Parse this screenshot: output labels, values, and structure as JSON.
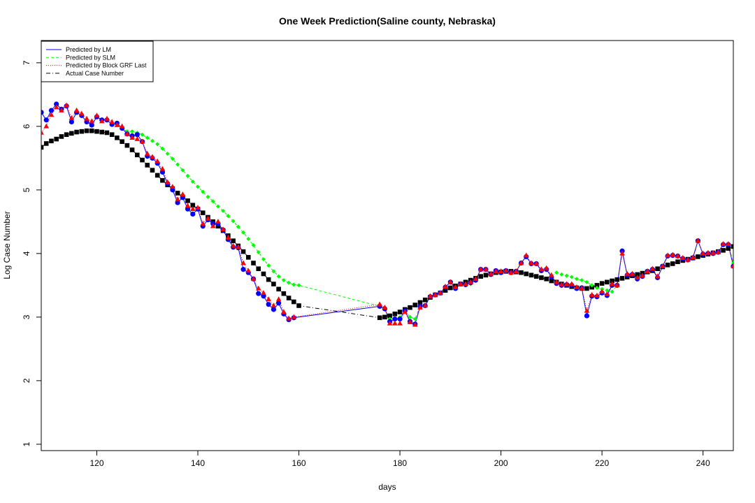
{
  "chart_data": {
    "type": "line",
    "title": "One Week Prediction(Saline county, Nebraska)",
    "xlabel": "days",
    "ylabel": "Log Case Number",
    "xlim": [
      109,
      246
    ],
    "ylim": [
      0.9,
      7.35
    ],
    "x_ticks": [
      120,
      140,
      160,
      180,
      200,
      220,
      240
    ],
    "y_ticks": [
      1,
      2,
      3,
      4,
      5,
      6,
      7
    ],
    "grid": false,
    "legend_position": "top-left",
    "series": [
      {
        "name": "Actual Case Number",
        "color": "#000000",
        "marker": "square",
        "x": [
          109,
          110,
          111,
          112,
          113,
          114,
          115,
          116,
          117,
          118,
          119,
          120,
          121,
          122,
          123,
          124,
          125,
          126,
          127,
          128,
          129,
          130,
          131,
          132,
          133,
          134,
          135,
          136,
          137,
          138,
          139,
          140,
          141,
          142,
          143,
          144,
          145,
          146,
          147,
          148,
          149,
          150,
          151,
          152,
          153,
          154,
          155,
          156,
          157,
          158,
          159,
          160,
          176,
          177,
          178,
          179,
          180,
          181,
          182,
          183,
          184,
          185,
          186,
          187,
          188,
          189,
          190,
          191,
          192,
          193,
          194,
          195,
          196,
          197,
          198,
          199,
          200,
          201,
          202,
          203,
          204,
          205,
          206,
          207,
          208,
          209,
          210,
          211,
          212,
          213,
          214,
          215,
          216,
          217,
          218,
          219,
          220,
          221,
          222,
          223,
          224,
          225,
          226,
          227,
          228,
          229,
          230,
          231,
          232,
          233,
          234,
          235,
          236,
          237,
          238,
          239,
          240,
          241,
          242,
          243,
          244,
          245,
          246
        ],
        "y": [
          5.67,
          5.73,
          5.77,
          5.8,
          5.84,
          5.87,
          5.89,
          5.91,
          5.92,
          5.93,
          5.93,
          5.92,
          5.91,
          5.9,
          5.87,
          5.82,
          5.76,
          5.7,
          5.63,
          5.55,
          5.47,
          5.39,
          5.31,
          5.23,
          5.15,
          5.08,
          5.02,
          4.95,
          4.89,
          4.83,
          4.76,
          4.7,
          4.64,
          4.57,
          4.5,
          4.43,
          4.36,
          4.28,
          4.2,
          4.12,
          4.03,
          3.94,
          3.85,
          3.76,
          3.68,
          3.59,
          3.52,
          3.44,
          3.37,
          3.3,
          3.24,
          3.18,
          2.99,
          3.0,
          3.02,
          3.05,
          3.08,
          3.12,
          3.15,
          3.19,
          3.23,
          3.27,
          3.31,
          3.35,
          3.38,
          3.42,
          3.46,
          3.49,
          3.52,
          3.55,
          3.58,
          3.61,
          3.64,
          3.66,
          3.68,
          3.7,
          3.71,
          3.72,
          3.72,
          3.71,
          3.7,
          3.68,
          3.66,
          3.64,
          3.62,
          3.6,
          3.57,
          3.55,
          3.52,
          3.5,
          3.48,
          3.46,
          3.45,
          3.45,
          3.47,
          3.5,
          3.53,
          3.55,
          3.57,
          3.59,
          3.61,
          3.63,
          3.65,
          3.67,
          3.69,
          3.71,
          3.73,
          3.76,
          3.79,
          3.82,
          3.84,
          3.87,
          3.89,
          3.91,
          3.93,
          3.95,
          3.97,
          3.99,
          4.01,
          4.03,
          4.05,
          4.08,
          4.11
        ]
      },
      {
        "name": "Predicted by LM",
        "color": "#0000ff",
        "marker": "circle",
        "x": [
          109,
          110,
          111,
          112,
          113,
          114,
          115,
          116,
          117,
          118,
          119,
          120,
          121,
          122,
          123,
          124,
          125,
          126,
          127,
          128,
          129,
          130,
          131,
          132,
          133,
          134,
          135,
          136,
          137,
          138,
          139,
          140,
          141,
          142,
          143,
          144,
          145,
          146,
          147,
          148,
          149,
          150,
          151,
          152,
          153,
          154,
          155,
          156,
          157,
          158,
          159,
          176,
          177,
          178,
          179,
          180,
          181,
          182,
          183,
          184,
          185,
          186,
          187,
          188,
          189,
          190,
          191,
          192,
          193,
          194,
          195,
          196,
          197,
          198,
          199,
          200,
          201,
          202,
          203,
          204,
          205,
          206,
          207,
          208,
          209,
          210,
          211,
          212,
          213,
          214,
          215,
          216,
          217,
          218,
          219,
          220,
          221,
          222,
          223,
          224,
          225,
          226,
          227,
          228,
          229,
          230,
          231,
          232,
          233,
          234,
          235,
          236,
          237,
          238,
          239,
          240,
          241,
          242,
          243,
          244,
          245,
          246
        ],
        "y": [
          6.22,
          6.1,
          6.25,
          6.35,
          6.27,
          6.32,
          6.07,
          6.22,
          6.17,
          6.07,
          6.02,
          6.15,
          6.1,
          6.1,
          6.03,
          6.05,
          5.97,
          5.88,
          5.85,
          5.87,
          5.76,
          5.53,
          5.5,
          5.42,
          5.28,
          5.1,
          5.0,
          4.8,
          4.88,
          4.7,
          4.62,
          4.7,
          4.43,
          4.53,
          4.47,
          4.47,
          4.37,
          4.22,
          4.1,
          4.09,
          3.75,
          3.7,
          3.6,
          3.37,
          3.33,
          3.2,
          3.12,
          3.22,
          3.05,
          2.96,
          2.99,
          3.17,
          3.13,
          2.93,
          2.97,
          2.97,
          3.1,
          2.93,
          2.89,
          3.17,
          3.18,
          3.32,
          3.35,
          3.38,
          3.47,
          3.55,
          3.45,
          3.52,
          3.51,
          3.54,
          3.58,
          3.75,
          3.75,
          3.67,
          3.73,
          3.7,
          3.73,
          3.7,
          3.72,
          3.85,
          3.95,
          3.84,
          3.84,
          3.73,
          3.75,
          3.63,
          3.53,
          3.5,
          3.51,
          3.5,
          3.45,
          3.46,
          3.02,
          3.33,
          3.32,
          3.38,
          3.34,
          3.5,
          3.5,
          4.04,
          3.66,
          3.67,
          3.6,
          3.64,
          3.72,
          3.75,
          3.62,
          3.8,
          3.96,
          3.97,
          3.96,
          3.92,
          3.9,
          3.93,
          4.2,
          3.99,
          4.0,
          4.0,
          4.02,
          4.14,
          4.14,
          3.8
        ]
      },
      {
        "name": "Predicted by SLM",
        "color": "#00ff00",
        "marker": "diamond",
        "x": [
          109,
          110,
          111,
          112,
          113,
          114,
          115,
          116,
          117,
          118,
          119,
          120,
          121,
          122,
          123,
          124,
          125,
          126,
          127,
          128,
          129,
          130,
          131,
          132,
          133,
          134,
          135,
          136,
          137,
          138,
          139,
          140,
          141,
          142,
          143,
          144,
          145,
          146,
          147,
          148,
          149,
          150,
          151,
          152,
          153,
          154,
          155,
          156,
          157,
          158,
          159,
          160,
          176,
          177,
          178,
          179,
          180,
          181,
          182,
          183,
          184,
          185,
          186,
          187,
          188,
          189,
          190,
          191,
          192,
          193,
          194,
          195,
          196,
          197,
          198,
          199,
          200,
          201,
          202,
          203,
          204,
          205,
          206,
          207,
          208,
          209,
          210,
          211,
          212,
          213,
          214,
          215,
          216,
          217,
          218,
          219,
          220,
          221,
          222,
          223,
          224,
          225,
          226,
          227,
          228,
          229,
          230,
          231,
          232,
          233,
          234,
          235,
          236,
          237,
          238,
          239,
          240,
          241,
          242,
          243,
          244,
          245,
          246
        ],
        "y": [
          6.22,
          6.1,
          6.25,
          6.35,
          6.27,
          6.32,
          6.07,
          6.22,
          6.17,
          6.07,
          6.02,
          6.15,
          6.1,
          6.1,
          6.03,
          6.05,
          5.97,
          5.92,
          5.92,
          5.9,
          5.87,
          5.82,
          5.77,
          5.72,
          5.65,
          5.57,
          5.49,
          5.4,
          5.31,
          5.22,
          5.13,
          5.05,
          4.97,
          4.89,
          4.82,
          4.74,
          4.67,
          4.59,
          4.51,
          4.42,
          4.33,
          4.23,
          4.13,
          4.02,
          3.91,
          3.81,
          3.72,
          3.64,
          3.58,
          3.54,
          3.51,
          3.5,
          3.17,
          3.13,
          2.97,
          2.98,
          3.0,
          3.1,
          3.0,
          2.97,
          3.17,
          3.18,
          3.32,
          3.35,
          3.38,
          3.47,
          3.55,
          3.45,
          3.52,
          3.5,
          3.52,
          3.58,
          3.75,
          3.75,
          3.67,
          3.73,
          3.7,
          3.73,
          3.7,
          3.72,
          3.85,
          3.95,
          3.84,
          3.84,
          3.73,
          3.75,
          3.65,
          3.7,
          3.67,
          3.65,
          3.63,
          3.6,
          3.58,
          3.55,
          3.5,
          3.46,
          3.44,
          3.42,
          3.4,
          3.5,
          4.04,
          3.66,
          3.67,
          3.6,
          3.64,
          3.72,
          3.75,
          3.62,
          3.8,
          3.96,
          3.97,
          3.96,
          3.92,
          3.9,
          3.93,
          4.2,
          3.99,
          4.0,
          4.0,
          4.02,
          4.14,
          4.14,
          3.85
        ]
      },
      {
        "name": "Predicted by Block GRF Last",
        "color": "#ff0000",
        "marker": "triangle",
        "x": [
          109,
          110,
          111,
          112,
          113,
          114,
          115,
          116,
          117,
          118,
          119,
          120,
          121,
          122,
          123,
          124,
          125,
          126,
          127,
          128,
          129,
          130,
          131,
          132,
          133,
          134,
          135,
          136,
          137,
          138,
          139,
          140,
          141,
          142,
          143,
          144,
          145,
          146,
          147,
          148,
          149,
          150,
          151,
          152,
          153,
          154,
          155,
          156,
          157,
          158,
          159,
          176,
          177,
          178,
          179,
          180,
          181,
          182,
          183,
          184,
          185,
          186,
          187,
          188,
          189,
          190,
          191,
          192,
          193,
          194,
          195,
          196,
          197,
          198,
          199,
          200,
          201,
          202,
          203,
          204,
          205,
          206,
          207,
          208,
          209,
          210,
          211,
          212,
          213,
          214,
          215,
          216,
          217,
          218,
          219,
          220,
          221,
          222,
          223,
          224,
          225,
          226,
          227,
          228,
          229,
          230,
          231,
          232,
          233,
          234,
          235,
          236,
          237,
          238,
          239,
          240,
          241,
          242,
          243,
          244,
          245,
          246
        ],
        "y": [
          5.9,
          6.0,
          6.18,
          6.3,
          6.25,
          6.33,
          6.13,
          6.25,
          6.2,
          6.12,
          6.08,
          6.17,
          6.08,
          6.12,
          6.07,
          6.02,
          6.0,
          5.88,
          5.82,
          5.8,
          5.76,
          5.57,
          5.52,
          5.45,
          5.33,
          5.12,
          5.05,
          4.85,
          4.93,
          4.75,
          4.7,
          4.72,
          4.47,
          4.55,
          4.43,
          4.5,
          4.38,
          4.25,
          4.12,
          4.1,
          3.85,
          3.73,
          3.6,
          3.45,
          3.38,
          3.28,
          3.18,
          3.28,
          3.08,
          2.98,
          3.0,
          3.2,
          3.15,
          2.9,
          2.9,
          2.9,
          3.08,
          2.92,
          2.88,
          3.15,
          3.18,
          3.33,
          3.35,
          3.38,
          3.48,
          3.55,
          3.47,
          3.52,
          3.52,
          3.55,
          3.6,
          3.75,
          3.75,
          3.68,
          3.72,
          3.72,
          3.73,
          3.7,
          3.72,
          3.85,
          3.97,
          3.85,
          3.84,
          3.75,
          3.77,
          3.66,
          3.55,
          3.51,
          3.52,
          3.52,
          3.47,
          3.45,
          3.1,
          3.35,
          3.34,
          3.4,
          3.36,
          3.52,
          3.5,
          4.0,
          3.68,
          3.68,
          3.62,
          3.65,
          3.72,
          3.76,
          3.64,
          3.8,
          3.97,
          3.98,
          3.96,
          3.93,
          3.9,
          3.94,
          4.2,
          4.0,
          4.01,
          4.01,
          4.02,
          4.15,
          4.15,
          3.8
        ]
      }
    ]
  }
}
